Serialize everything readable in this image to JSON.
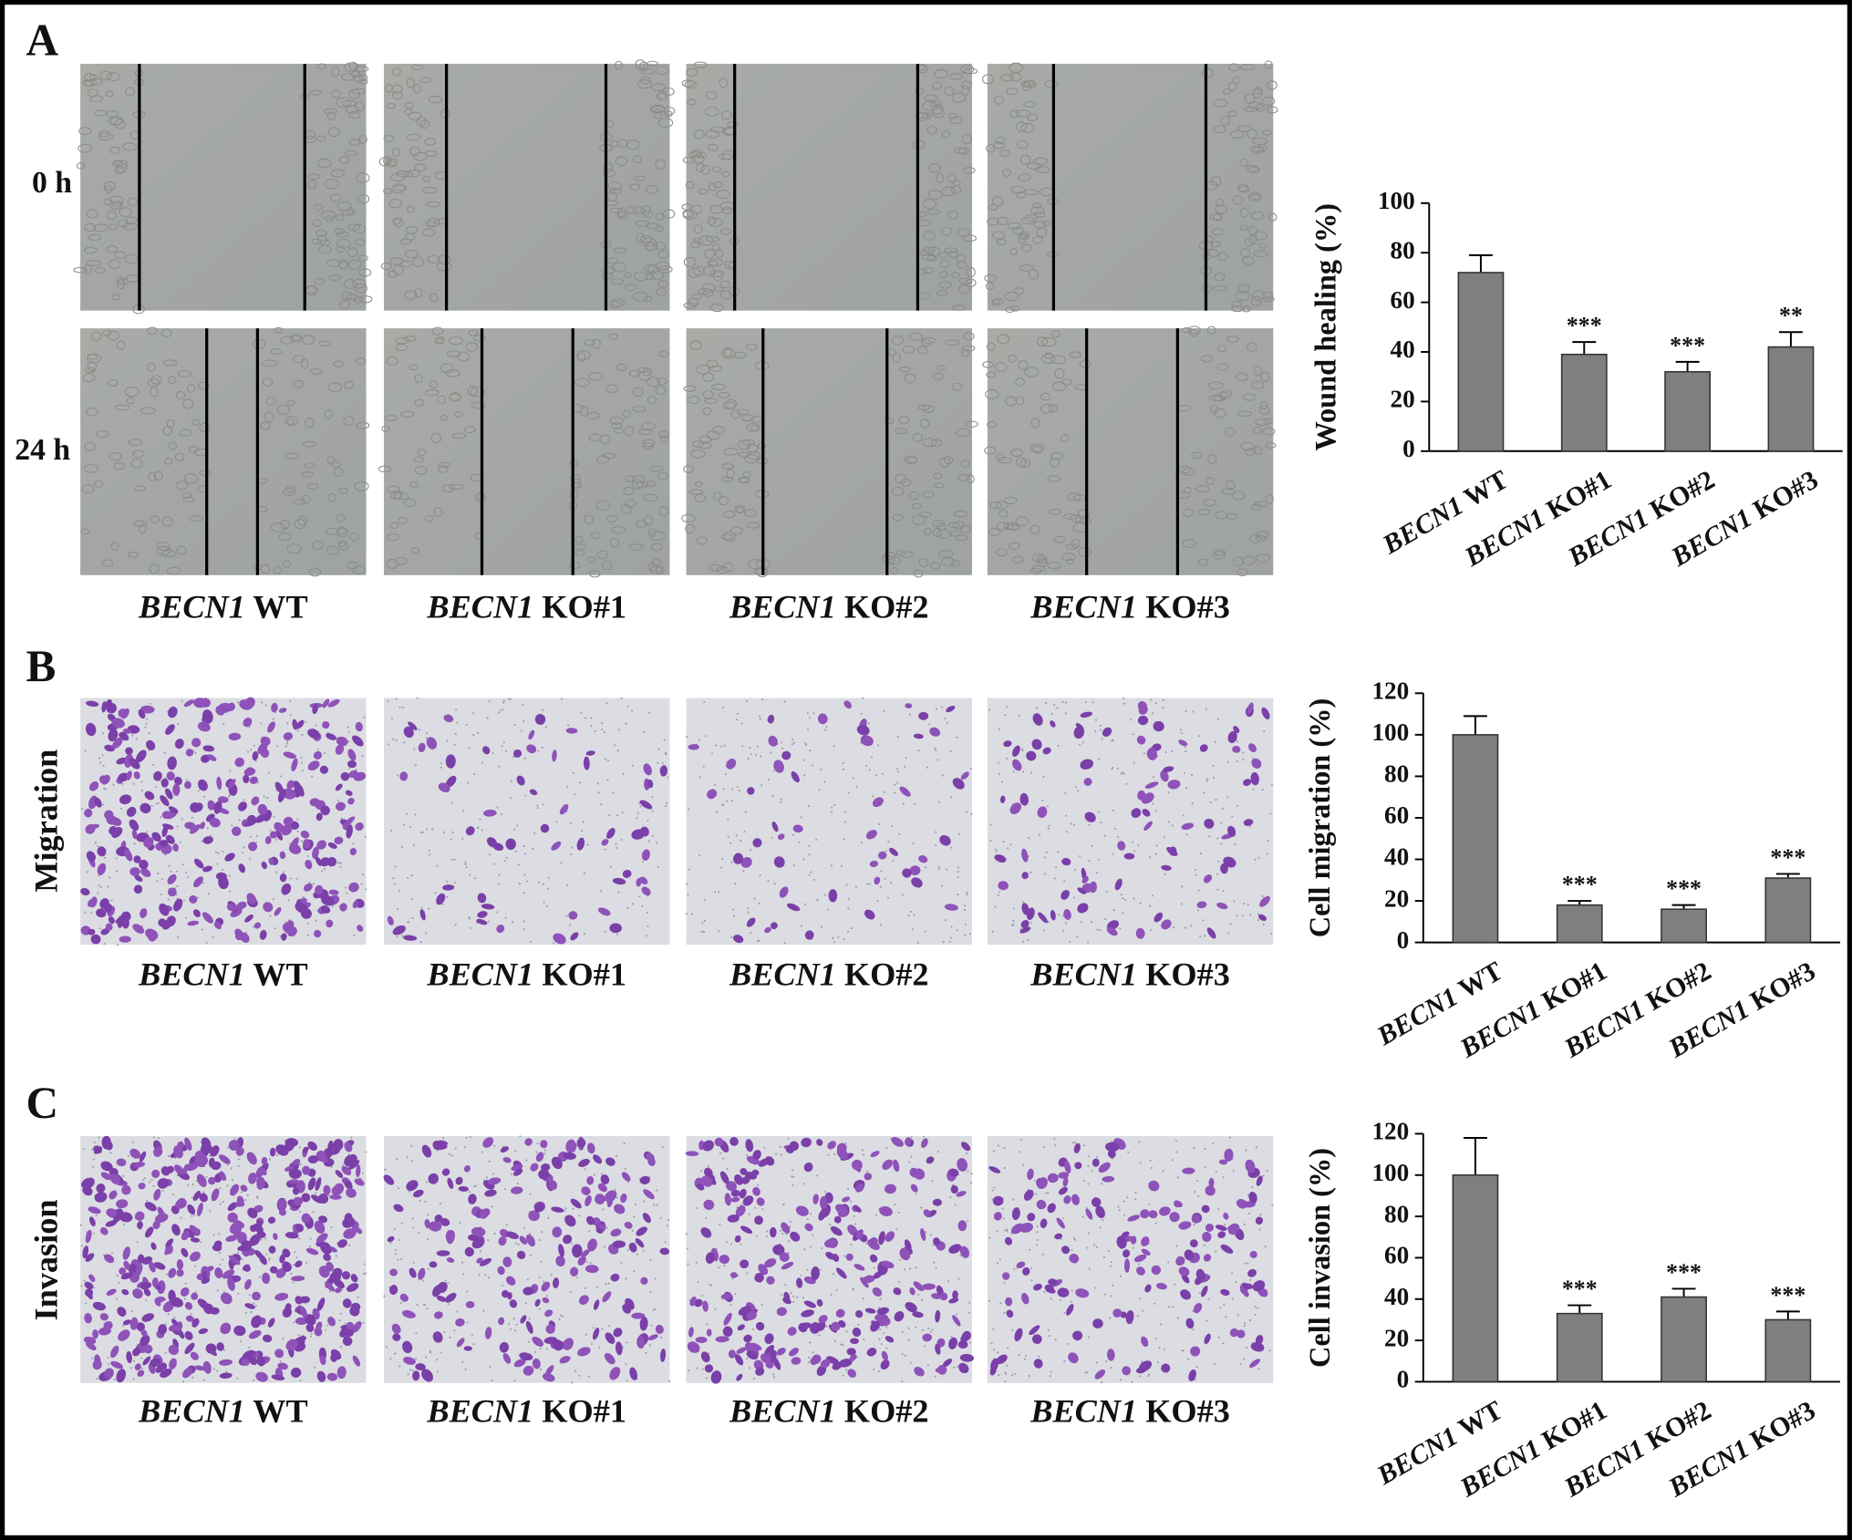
{
  "panel_labels": [
    "A",
    "B",
    "C"
  ],
  "row_labels": [
    "0 h",
    "24 h",
    "Migration",
    "Invasion"
  ],
  "image_captions": {
    "A": [
      "BECN1 WT",
      "BECN1 KO#1",
      "BECN1 KO#2",
      "BECN1 KO#3"
    ],
    "B": [
      "BECN1 WT",
      "BECN1 KO#1",
      "BECN1 KO#2",
      "BECN1 KO#3"
    ],
    "C": [
      "BECN1 WT",
      "BECN1 KO#1",
      "BECN1 KO#2",
      "BECN1 KO#3"
    ]
  },
  "chart_data": [
    {
      "type": "bar",
      "y_label": "Wound healing (%)",
      "categories": [
        "BECN1 WT",
        "BECN1 KO#1",
        "BECN1 KO#2",
        "BECN1 KO#3"
      ],
      "values": [
        72,
        39,
        32,
        42
      ],
      "errors": [
        7,
        5,
        4,
        6
      ],
      "significance": [
        null,
        "***",
        "***",
        "**"
      ],
      "color": "#7f7f7f",
      "ylim": [
        0,
        100
      ],
      "yticks": [
        0,
        20,
        40,
        60,
        80,
        100
      ]
    },
    {
      "type": "bar",
      "y_label": "Cell migration (%)",
      "categories": [
        "BECN1 WT",
        "BECN1 KO#1",
        "BECN1 KO#2",
        "BECN1 KO#3"
      ],
      "values": [
        100,
        18,
        16,
        31
      ],
      "errors": [
        9,
        2,
        2,
        2
      ],
      "significance": [
        null,
        "***",
        "***",
        "***"
      ],
      "color": "#7f7f7f",
      "ylim": [
        0,
        120
      ],
      "yticks": [
        0,
        20,
        40,
        60,
        80,
        100,
        120
      ]
    },
    {
      "type": "bar",
      "y_label": "Cell invasion (%)",
      "categories": [
        "BECN1 WT",
        "BECN1 KO#1",
        "BECN1 KO#2",
        "BECN1 KO#3"
      ],
      "values": [
        100,
        33,
        41,
        30
      ],
      "errors": [
        18,
        4,
        4,
        4
      ],
      "significance": [
        null,
        "***",
        "***",
        "***"
      ],
      "color": "#7f7f7f",
      "ylim": [
        0,
        120
      ],
      "yticks": [
        0,
        20,
        40,
        60,
        80,
        100,
        120
      ]
    }
  ]
}
